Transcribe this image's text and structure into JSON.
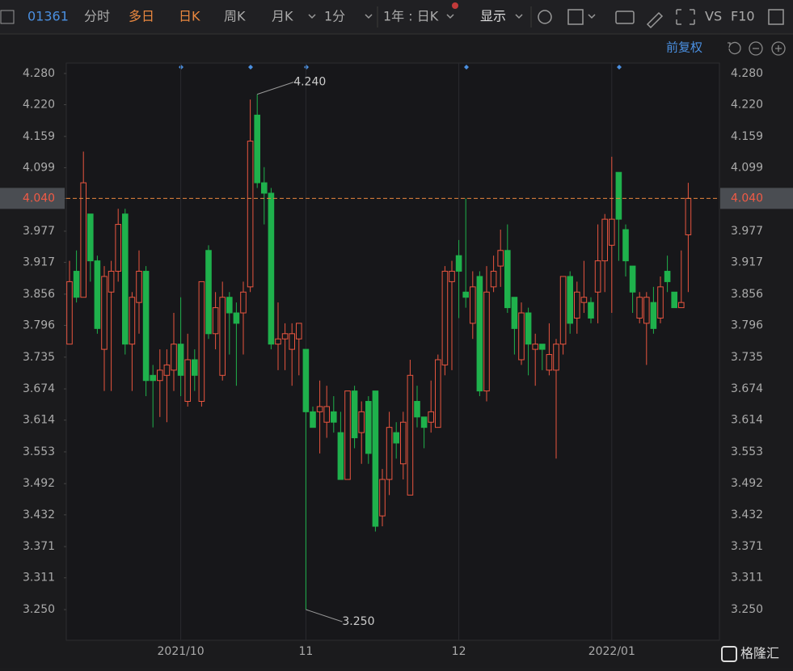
{
  "toolbar": {
    "code": "01361",
    "tabs": [
      "分时",
      "多日",
      "日K",
      "周K",
      "月K",
      "1分",
      "1年 : 日K",
      "显示"
    ],
    "vs": "VS",
    "f10": "F10",
    "adjust": "前复权",
    "watermark": "格隆汇"
  },
  "chart_data": {
    "type": "candlestick",
    "up_color": "#e8553f",
    "down_color": "#1fb14c",
    "open": [
      3.76,
      3.9,
      3.85,
      4.01,
      3.92,
      3.75,
      3.86,
      3.9,
      4.01,
      3.76,
      3.84,
      3.9,
      3.7,
      3.69,
      3.7,
      3.71,
      3.76,
      3.65,
      3.73,
      3.65,
      3.94,
      3.78,
      3.7,
      3.85,
      3.82,
      3.82,
      3.87,
      4.2,
      4.07,
      4.05,
      3.76,
      3.77,
      3.75,
      3.77,
      3.75,
      3.63,
      3.63,
      3.61,
      3.63,
      3.59,
      3.5,
      3.67,
      3.59,
      3.65,
      3.67,
      3.43,
      3.5,
      3.59,
      3.53,
      3.47,
      3.65,
      3.62,
      3.61,
      3.6,
      3.72,
      3.88,
      3.93,
      3.86,
      3.8,
      3.89,
      3.67,
      3.87,
      3.91,
      3.94,
      3.85,
      3.73,
      3.82,
      3.75,
      3.76,
      3.71,
      3.71,
      3.76,
      3.89,
      3.81,
      3.84,
      3.84,
      3.86,
      3.92,
      3.95,
      4.09,
      3.98,
      3.91,
      3.81,
      3.8,
      3.84,
      3.81,
      3.9,
      3.86,
      3.83,
      3.97
    ],
    "high": [
      3.92,
      3.94,
      4.13,
      4.01,
      3.93,
      3.91,
      3.92,
      4.02,
      4.02,
      3.86,
      3.94,
      3.91,
      3.72,
      3.75,
      3.75,
      3.82,
      3.85,
      3.78,
      3.75,
      3.88,
      3.95,
      3.86,
      3.88,
      3.86,
      3.84,
      3.88,
      4.23,
      4.24,
      4.1,
      4.06,
      3.84,
      3.8,
      3.8,
      3.8,
      3.75,
      3.64,
      3.69,
      3.68,
      3.66,
      3.63,
      3.67,
      3.68,
      3.65,
      3.66,
      3.67,
      3.52,
      3.63,
      3.61,
      3.63,
      3.73,
      3.68,
      3.62,
      3.69,
      3.74,
      3.91,
      3.92,
      3.96,
      4.04,
      3.9,
      3.9,
      3.91,
      3.93,
      3.98,
      3.99,
      3.85,
      3.84,
      3.83,
      3.78,
      3.76,
      3.8,
      3.77,
      3.89,
      3.9,
      3.88,
      3.92,
      3.85,
      3.99,
      4.01,
      4.12,
      4.09,
      3.99,
      3.91,
      3.86,
      3.86,
      3.87,
      3.89,
      3.93,
      3.86,
      3.94,
      4.07
    ],
    "low": [
      3.76,
      3.84,
      3.85,
      3.88,
      3.78,
      3.67,
      3.67,
      3.88,
      3.74,
      3.67,
      3.78,
      3.66,
      3.6,
      3.62,
      3.61,
      3.67,
      3.66,
      3.64,
      3.67,
      3.64,
      3.77,
      3.75,
      3.69,
      3.74,
      3.68,
      3.74,
      3.86,
      4.06,
      3.99,
      3.75,
      3.71,
      3.71,
      3.68,
      3.7,
      3.25,
      3.6,
      3.55,
      3.58,
      3.59,
      3.5,
      3.5,
      3.56,
      3.53,
      3.53,
      3.4,
      3.41,
      3.47,
      3.54,
      3.5,
      3.47,
      3.6,
      3.56,
      3.59,
      3.6,
      3.7,
      3.71,
      3.81,
      3.83,
      3.77,
      3.66,
      3.65,
      3.86,
      3.87,
      3.82,
      3.74,
      3.72,
      3.7,
      3.68,
      3.71,
      3.7,
      3.54,
      3.74,
      3.78,
      3.78,
      3.82,
      3.8,
      3.8,
      3.86,
      3.82,
      3.92,
      3.89,
      3.82,
      3.8,
      3.72,
      3.78,
      3.8,
      3.86,
      3.83,
      3.83,
      3.86
    ],
    "close": [
      3.88,
      3.85,
      4.07,
      3.92,
      3.79,
      3.89,
      3.9,
      3.99,
      3.76,
      3.85,
      3.9,
      3.69,
      3.69,
      3.71,
      3.72,
      3.76,
      3.7,
      3.73,
      3.7,
      3.88,
      3.78,
      3.83,
      3.85,
      3.82,
      3.8,
      3.86,
      4.15,
      4.07,
      4.05,
      3.76,
      3.77,
      3.78,
      3.78,
      3.8,
      3.63,
      3.6,
      3.64,
      3.64,
      3.61,
      3.5,
      3.67,
      3.58,
      3.63,
      3.55,
      3.41,
      3.5,
      3.6,
      3.57,
      3.61,
      3.7,
      3.62,
      3.6,
      3.63,
      3.73,
      3.9,
      3.9,
      3.9,
      3.85,
      3.87,
      3.67,
      3.86,
      3.9,
      3.94,
      3.83,
      3.79,
      3.82,
      3.76,
      3.76,
      3.75,
      3.74,
      3.76,
      3.89,
      3.8,
      3.86,
      3.85,
      3.81,
      3.92,
      4.0,
      4.0,
      4.0,
      3.92,
      3.86,
      3.85,
      3.85,
      3.79,
      3.87,
      3.88,
      3.83,
      3.84,
      4.04
    ],
    "ylim": [
      3.191,
      4.3
    ],
    "yticks": [
      {
        "value": 4.28,
        "label": "4.280"
      },
      {
        "value": 4.22,
        "label": "4.220"
      },
      {
        "value": 4.159,
        "label": "4.159"
      },
      {
        "value": 4.099,
        "label": "4.099"
      },
      {
        "value": 4.04,
        "label": "4.040"
      },
      {
        "value": 3.977,
        "label": "3.977"
      },
      {
        "value": 3.917,
        "label": "3.917"
      },
      {
        "value": 3.856,
        "label": "3.856"
      },
      {
        "value": 3.796,
        "label": "3.796"
      },
      {
        "value": 3.735,
        "label": "3.735"
      },
      {
        "value": 3.674,
        "label": "3.674"
      },
      {
        "value": 3.614,
        "label": "3.614"
      },
      {
        "value": 3.553,
        "label": "3.553"
      },
      {
        "value": 3.492,
        "label": "3.492"
      },
      {
        "value": 3.432,
        "label": "3.432"
      },
      {
        "value": 3.371,
        "label": "3.371"
      },
      {
        "value": 3.311,
        "label": "3.311"
      },
      {
        "value": 3.25,
        "label": "3.250"
      }
    ],
    "xticks": [
      {
        "value": 16,
        "label": "2021/10"
      },
      {
        "value": 34,
        "label": "11"
      },
      {
        "value": 56,
        "label": "12"
      },
      {
        "value": 78,
        "label": "2022/01"
      }
    ],
    "current_price": {
      "value": 4.04,
      "label": "4.040"
    },
    "annotations": [
      {
        "index": 27,
        "value": 4.24,
        "label": "4.240"
      },
      {
        "index": 34,
        "value": 3.25,
        "label": "3.250"
      }
    ]
  }
}
